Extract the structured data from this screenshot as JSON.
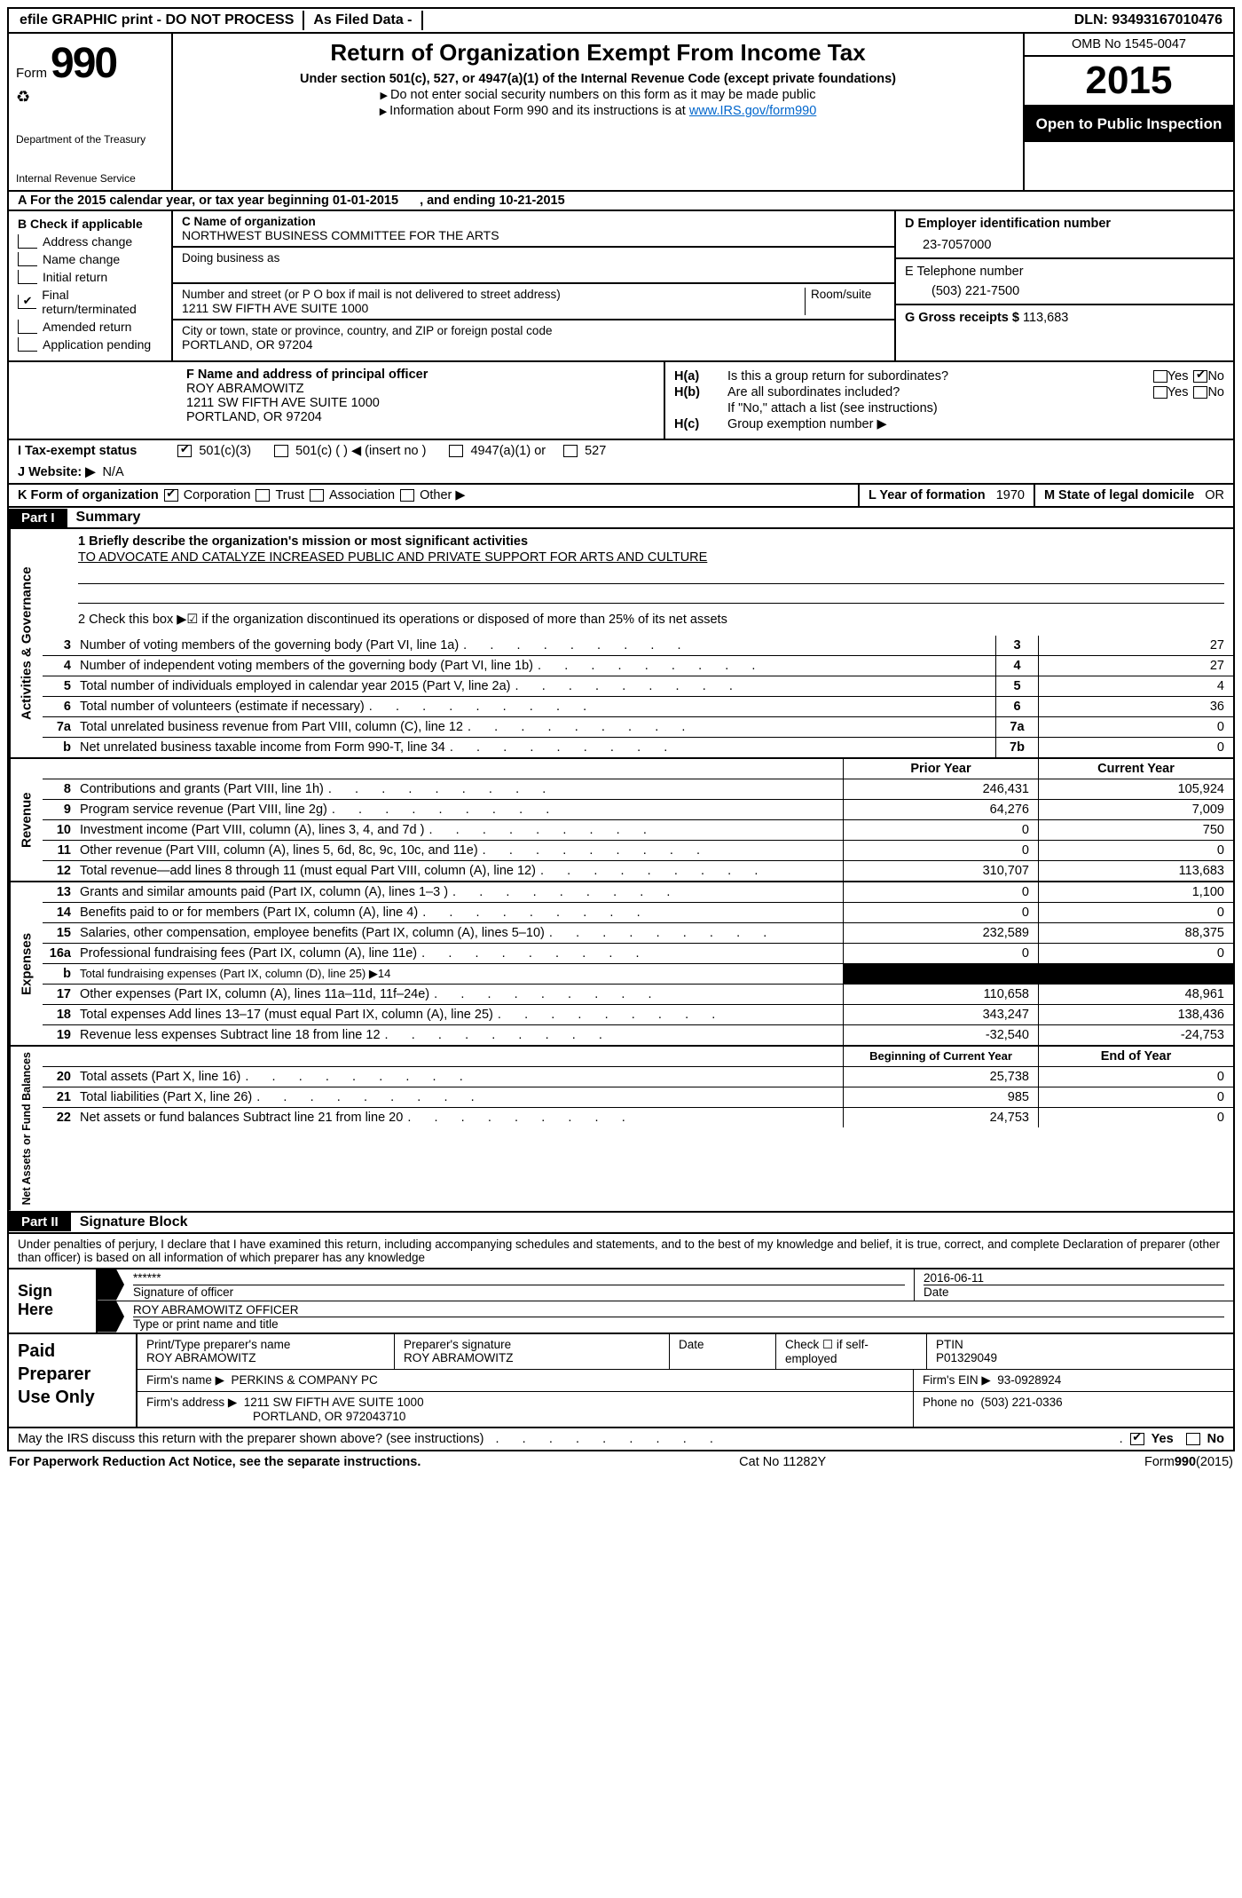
{
  "topbar": {
    "efile": "efile GRAPHIC print - DO NOT PROCESS",
    "asfiled": "As Filed Data -",
    "dln_label": "DLN:",
    "dln": "93493167010476"
  },
  "header": {
    "form_word": "Form",
    "form_num": "990",
    "dept1": "Department of the Treasury",
    "dept2": "Internal Revenue Service",
    "title": "Return of Organization Exempt From Income Tax",
    "sub": "Under section 501(c), 527, or 4947(a)(1) of the Internal Revenue Code (except private foundations)",
    "line1": "Do not enter social security numbers on this form as it may be made public",
    "line2_a": "Information about Form 990 and its instructions is at ",
    "line2_link": "www.IRS.gov/form990",
    "omb": "OMB No 1545-0047",
    "year": "2015",
    "inspect": "Open to Public Inspection"
  },
  "rowA": {
    "text_a": "A   For the 2015 calendar year, or tax year beginning 01-01-2015",
    "text_b": ", and ending 10-21-2015"
  },
  "B": {
    "label": "B  Check if applicable",
    "opts": [
      "Address change",
      "Name change",
      "Initial return",
      "Final return/terminated",
      "Amended return",
      "Application pending"
    ],
    "checked_index": 3
  },
  "C": {
    "name_label": "C Name of organization",
    "name": "NORTHWEST BUSINESS COMMITTEE FOR THE ARTS",
    "dba_label": "Doing business as",
    "street_label": "Number and street (or P O  box if mail is not delivered to street address)",
    "room_label": "Room/suite",
    "street": "1211 SW FIFTH AVE SUITE 1000",
    "city_label": "City or town, state or province, country, and ZIP or foreign postal code",
    "city": "PORTLAND, OR  97204"
  },
  "D": {
    "label": "D Employer identification number",
    "val": "23-7057000"
  },
  "E": {
    "label": "E Telephone number",
    "val": "(503) 221-7500"
  },
  "G": {
    "label": "G Gross receipts $",
    "val": "113,683"
  },
  "F": {
    "label": "F    Name and address of principal officer",
    "name": "ROY ABRAMOWITZ",
    "addr1": "1211 SW FIFTH AVE SUITE 1000",
    "addr2": "PORTLAND, OR  97204"
  },
  "H": {
    "a": "Is this a group return for subordinates?",
    "b": "Are all subordinates included?",
    "note": "If \"No,\" attach a list  (see instructions)",
    "c": "Group exemption number ▶",
    "yes": "Yes",
    "no": "No"
  },
  "I": {
    "label": "I   Tax-exempt status",
    "opts": [
      "501(c)(3)",
      "501(c) (  ) ◀ (insert no )",
      "4947(a)(1) or",
      "527"
    ]
  },
  "J": {
    "label": "J   Website: ▶",
    "val": "N/A"
  },
  "K": {
    "label": "K Form of organization",
    "opts": [
      "Corporation",
      "Trust",
      "Association",
      "Other ▶"
    ],
    "L_label": "L Year of formation",
    "L_val": "1970",
    "M_label": "M State of legal domicile",
    "M_val": "OR"
  },
  "partI": {
    "part": "Part I",
    "title": "Summary"
  },
  "gov": {
    "tab": "Activities & Governance",
    "desc_label": "1 Briefly describe the organization's mission or most significant activities",
    "mission": "TO ADVOCATE AND CATALYZE INCREASED PUBLIC AND PRIVATE SUPPORT FOR ARTS AND CULTURE",
    "check2": "2  Check this box ▶☑ if the organization discontinued its operations or disposed of more than 25% of its net assets",
    "rows": [
      {
        "n": "3",
        "label": "Number of voting members of the governing body (Part VI, line 1a)",
        "col": "3",
        "val": "27"
      },
      {
        "n": "4",
        "label": "Number of independent voting members of the governing body (Part VI, line 1b)",
        "col": "4",
        "val": "27"
      },
      {
        "n": "5",
        "label": "Total number of individuals employed in calendar year 2015 (Part V, line 2a)",
        "col": "5",
        "val": "4"
      },
      {
        "n": "6",
        "label": "Total number of volunteers (estimate if necessary)",
        "col": "6",
        "val": "36"
      },
      {
        "n": "7a",
        "label": "Total unrelated business revenue from Part VIII, column (C), line 12",
        "col": "7a",
        "val": "0"
      },
      {
        "n": "b",
        "label": "Net unrelated business taxable income from Form 990-T, line 34",
        "col": "7b",
        "val": "0"
      }
    ]
  },
  "cols_hdr": {
    "prior": "Prior Year",
    "current": "Current Year",
    "boy": "Beginning of Current Year",
    "eoy": "End of Year"
  },
  "rev": {
    "tab": "Revenue",
    "rows": [
      {
        "n": "8",
        "label": "Contributions and grants (Part VIII, line 1h)",
        "py": "246,431",
        "cy": "105,924"
      },
      {
        "n": "9",
        "label": "Program service revenue (Part VIII, line 2g)",
        "py": "64,276",
        "cy": "7,009"
      },
      {
        "n": "10",
        "label": "Investment income (Part VIII, column (A), lines 3, 4, and 7d )",
        "py": "0",
        "cy": "750"
      },
      {
        "n": "11",
        "label": "Other revenue (Part VIII, column (A), lines 5, 6d, 8c, 9c, 10c, and 11e)",
        "py": "0",
        "cy": "0"
      },
      {
        "n": "12",
        "label": "Total revenue—add lines 8 through 11 (must equal Part VIII, column (A), line 12)",
        "py": "310,707",
        "cy": "113,683"
      }
    ]
  },
  "exp": {
    "tab": "Expenses",
    "rows": [
      {
        "n": "13",
        "label": "Grants and similar amounts paid (Part IX, column (A), lines 1–3 )",
        "py": "0",
        "cy": "1,100"
      },
      {
        "n": "14",
        "label": "Benefits paid to or for members (Part IX, column (A), line 4)",
        "py": "0",
        "cy": "0"
      },
      {
        "n": "15",
        "label": "Salaries, other compensation, employee benefits (Part IX, column (A), lines 5–10)",
        "py": "232,589",
        "cy": "88,375"
      },
      {
        "n": "16a",
        "label": "Professional fundraising fees (Part IX, column (A), line 11e)",
        "py": "0",
        "cy": "0"
      },
      {
        "n": "b",
        "label": "Total fundraising expenses (Part IX, column (D), line 25) ▶14",
        "py": "BLACK",
        "cy": "BLACK",
        "small": true
      },
      {
        "n": "17",
        "label": "Other expenses (Part IX, column (A), lines 11a–11d, 11f–24e)",
        "py": "110,658",
        "cy": "48,961"
      },
      {
        "n": "18",
        "label": "Total expenses  Add lines 13–17 (must equal Part IX, column (A), line 25)",
        "py": "343,247",
        "cy": "138,436"
      },
      {
        "n": "19",
        "label": "Revenue less expenses  Subtract line 18 from line 12",
        "py": "-32,540",
        "cy": "-24,753"
      }
    ]
  },
  "net": {
    "tab": "Net Assets or Fund Balances",
    "rows": [
      {
        "n": "20",
        "label": "Total assets (Part X, line 16)",
        "py": "25,738",
        "cy": "0"
      },
      {
        "n": "21",
        "label": "Total liabilities (Part X, line 26)",
        "py": "985",
        "cy": "0"
      },
      {
        "n": "22",
        "label": "Net assets or fund balances  Subtract line 21 from line 20",
        "py": "24,753",
        "cy": "0"
      }
    ]
  },
  "partII": {
    "part": "Part II",
    "title": "Signature Block"
  },
  "sig_text": "Under penalties of perjury, I declare that I have examined this return, including accompanying schedules and statements, and to the best of my knowledge and belief, it is true, correct, and complete  Declaration of preparer (other than officer) is based on all information of which preparer has any knowledge",
  "sign": {
    "left": "Sign Here",
    "stars": "******",
    "sig_label": "Signature of officer",
    "date": "2016-06-11",
    "date_label": "Date",
    "name": "ROY ABRAMOWITZ OFFICER",
    "name_label": "Type or print name and title"
  },
  "prep": {
    "left": "Paid Preparer Use Only",
    "r1": {
      "a_label": "Print/Type preparer's name",
      "a": "ROY ABRAMOWITZ",
      "b_label": "Preparer's signature",
      "b": "ROY ABRAMOWITZ",
      "c_label": "Date",
      "d_label": "Check ☐ if self-employed",
      "e_label": "PTIN",
      "e": "P01329049"
    },
    "r2": {
      "label": "Firm's name      ▶",
      "val": "PERKINS & COMPANY PC",
      "ein_label": "Firm's EIN ▶",
      "ein": "93-0928924"
    },
    "r3": {
      "label": "Firm's address ▶",
      "val1": "1211 SW FIFTH AVE SUITE 1000",
      "val2": "PORTLAND, OR  972043710",
      "ph_label": "Phone no",
      "ph": "(503) 221-0336"
    }
  },
  "may_discuss": "May the IRS discuss this return with the preparer shown above? (see instructions)",
  "footer": {
    "left": "For Paperwork Reduction Act Notice, see the separate instructions.",
    "mid": "Cat No 11282Y",
    "right": "Form990(2015)"
  }
}
